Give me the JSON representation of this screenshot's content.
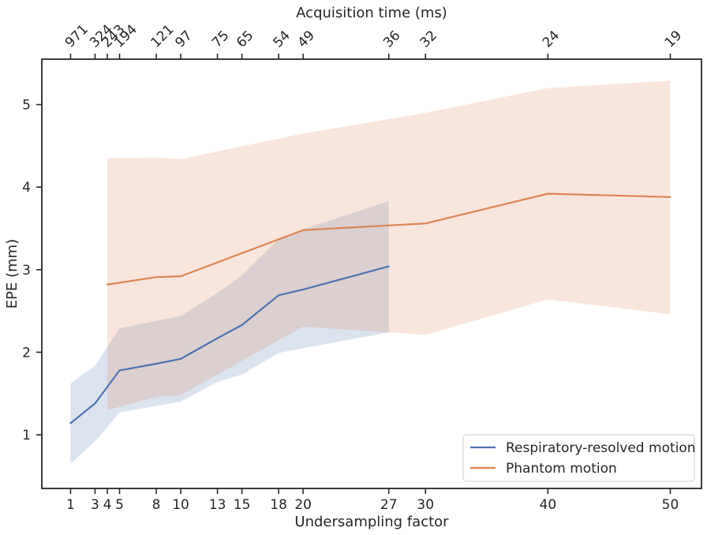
{
  "chart_data": {
    "type": "line",
    "xlabel": "Undersampling factor",
    "ylabel": "EPE (mm)",
    "top_xlabel": "Acquisition time (ms)",
    "xlim": [
      -1.35,
      52.55
    ],
    "ylim": [
      0.35,
      5.55
    ],
    "x_ticks": [
      1,
      3,
      4,
      5,
      8,
      10,
      13,
      15,
      18,
      20,
      27,
      30,
      40,
      50
    ],
    "y_ticks": [
      1,
      2,
      3,
      4,
      5
    ],
    "top_ticks": [
      {
        "x": 1,
        "label": "971"
      },
      {
        "x": 3,
        "label": "324"
      },
      {
        "x": 4,
        "label": "243"
      },
      {
        "x": 5,
        "label": "194"
      },
      {
        "x": 8,
        "label": "121"
      },
      {
        "x": 10,
        "label": "97"
      },
      {
        "x": 13,
        "label": "75"
      },
      {
        "x": 15,
        "label": "65"
      },
      {
        "x": 18,
        "label": "54"
      },
      {
        "x": 20,
        "label": "49"
      },
      {
        "x": 27,
        "label": "36"
      },
      {
        "x": 30,
        "label": "32"
      },
      {
        "x": 40,
        "label": "24"
      },
      {
        "x": 50,
        "label": "19"
      }
    ],
    "legend_position": "bottom-right",
    "series": [
      {
        "name": "Respiratory-resolved motion",
        "color": "#4c72b0",
        "x": [
          1,
          3,
          5,
          8,
          10,
          13,
          15,
          18,
          20,
          27
        ],
        "values": [
          1.14,
          1.38,
          1.78,
          1.86,
          1.92,
          2.17,
          2.33,
          2.69,
          2.76,
          3.04
        ],
        "lower": [
          0.65,
          0.92,
          1.27,
          1.35,
          1.4,
          1.64,
          1.73,
          1.99,
          2.05,
          2.24
        ],
        "upper": [
          1.62,
          1.84,
          2.29,
          2.38,
          2.44,
          2.72,
          2.93,
          3.37,
          3.49,
          3.83
        ]
      },
      {
        "name": "Phantom motion",
        "color": "#dd8452",
        "x": [
          4,
          8,
          10,
          20,
          30,
          40,
          50
        ],
        "values": [
          2.82,
          2.91,
          2.92,
          3.48,
          3.56,
          3.92,
          3.88
        ],
        "lower": [
          1.3,
          1.46,
          1.48,
          2.31,
          2.21,
          2.64,
          2.46
        ],
        "upper": [
          4.35,
          4.36,
          4.34,
          4.65,
          4.9,
          5.2,
          5.29
        ]
      }
    ]
  }
}
